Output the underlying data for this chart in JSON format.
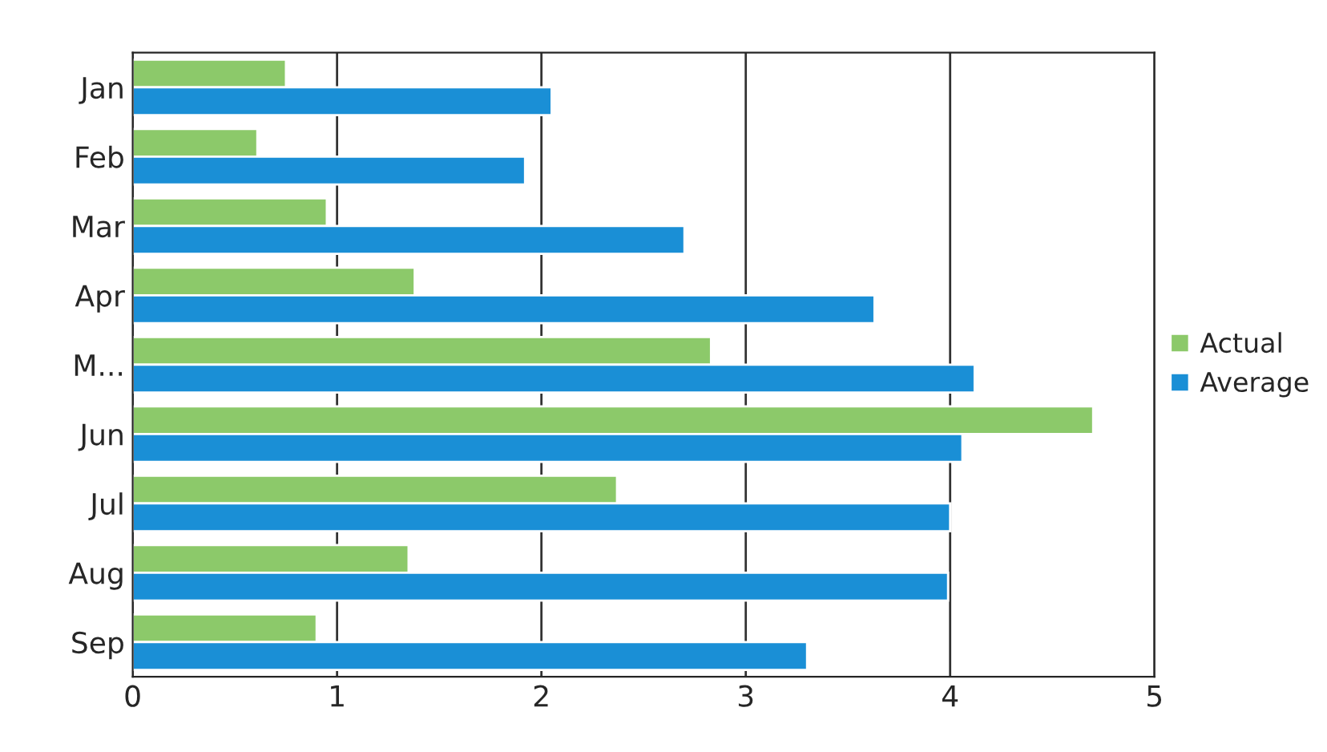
{
  "chart_data": {
    "type": "bar",
    "orientation": "horizontal",
    "categories": [
      "Jan",
      "Feb",
      "Mar",
      "Apr",
      "M...",
      "Jun",
      "Jul",
      "Aug",
      "Sep"
    ],
    "series": [
      {
        "name": "Actual",
        "color": "#8cc96a",
        "values": [
          0.75,
          0.61,
          0.95,
          1.38,
          2.83,
          4.7,
          2.37,
          1.35,
          0.9
        ]
      },
      {
        "name": "Average",
        "color": "#1a8fd6",
        "values": [
          2.05,
          1.92,
          2.7,
          3.63,
          4.12,
          4.06,
          4.0,
          3.99,
          3.3
        ]
      }
    ],
    "xlim": [
      0,
      5
    ],
    "xticks": [
      0,
      1,
      2,
      3,
      4,
      5
    ],
    "grid": "x",
    "legend": "right"
  }
}
